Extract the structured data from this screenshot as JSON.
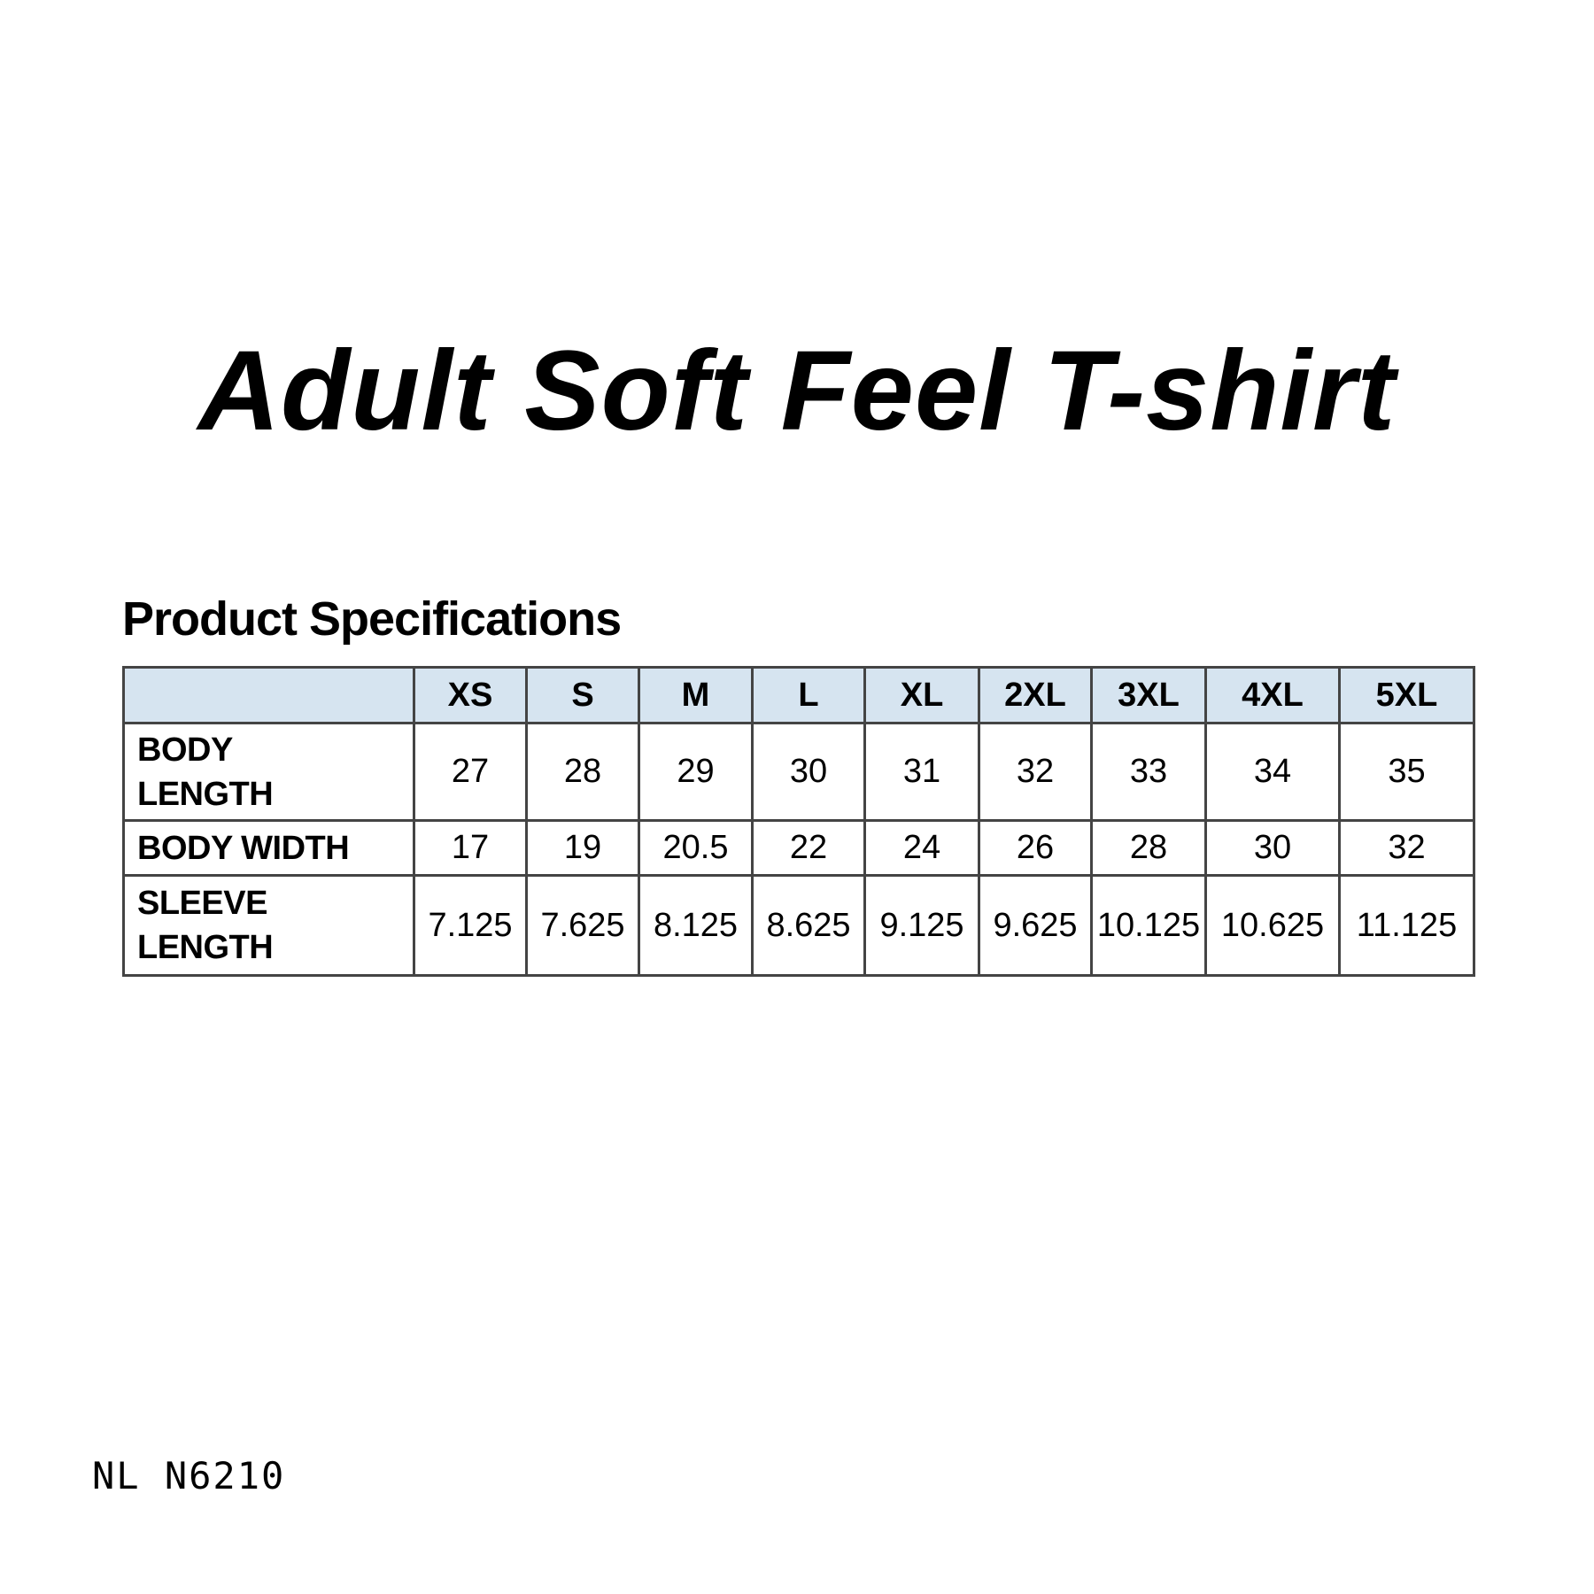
{
  "title": "Adult Soft Feel T-shirt",
  "spec_heading": "Product Specifications",
  "table": {
    "header_fill": "#d6e4f0",
    "columns": [
      "XS",
      "S",
      "M",
      "L",
      "XL",
      "2XL",
      "3XL",
      "4XL",
      "5XL"
    ],
    "rows": [
      {
        "label_lines": [
          "BODY",
          "LENGTH"
        ],
        "values": [
          "27",
          "28",
          "29",
          "30",
          "31",
          "32",
          "33",
          "34",
          "35"
        ]
      },
      {
        "label_lines": [
          "BODY WIDTH"
        ],
        "values": [
          "17",
          "19",
          "20.5",
          "22",
          "24",
          "26",
          "28",
          "30",
          "32"
        ]
      },
      {
        "label_lines": [
          "SLEEVE",
          "LENGTH"
        ],
        "values": [
          "7.125",
          "7.625",
          "8.125",
          "8.625",
          "9.125",
          "9.625",
          "10.125",
          "10.625",
          "11.125"
        ]
      }
    ]
  },
  "product_code": "NL N6210"
}
